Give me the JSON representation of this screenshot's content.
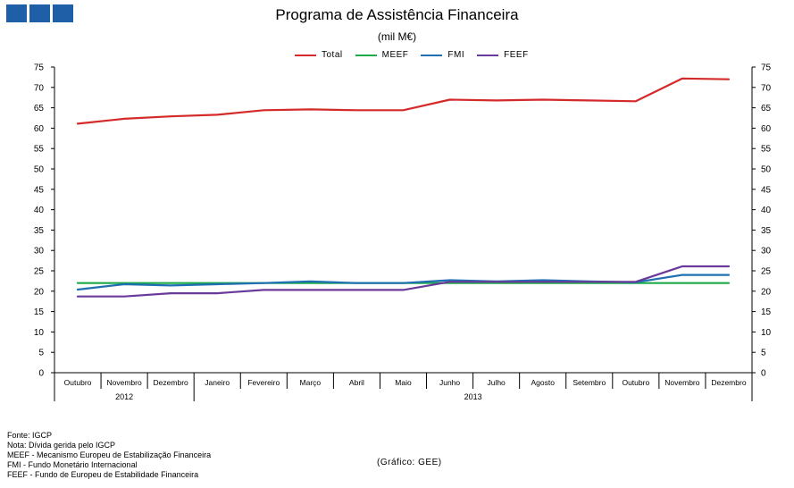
{
  "header": {
    "title": "Programa  de Assistência Financeira",
    "subtitle": "(mil M€)"
  },
  "legend": [
    {
      "label": "Total",
      "color": "#d42a2a"
    },
    {
      "label": "MEEF",
      "color": "#1faa4a"
    },
    {
      "label": "FMI",
      "color": "#1f6fb2"
    },
    {
      "label": "FEEF",
      "color": "#6a3a9a"
    }
  ],
  "chart_data": {
    "type": "line",
    "title": "Programa  de Assistência Financeira",
    "ylabel": "(mil M€)",
    "xlabel": "",
    "ylim": [
      0,
      75
    ],
    "yticks": [
      0,
      5,
      10,
      15,
      20,
      25,
      30,
      35,
      40,
      45,
      50,
      55,
      60,
      65,
      70,
      75
    ],
    "categories": [
      "Outubro",
      "Novembro",
      "Dezembro",
      "Janeiro",
      "Fevereiro",
      "Março",
      "Abril",
      "Maio",
      "Junho",
      "Julho",
      "Agosto",
      "Setembro",
      "Outubro",
      "Novembro",
      "Dezembro"
    ],
    "year_groups": [
      {
        "label": "2012",
        "span": 3
      },
      {
        "label": "2013",
        "span": 12
      }
    ],
    "grid": false,
    "series": [
      {
        "name": "Total",
        "color": "#d42a2a",
        "values": [
          61.1,
          62.3,
          62.9,
          63.3,
          64.4,
          64.6,
          64.4,
          64.4,
          67.0,
          66.8,
          67.0,
          66.8,
          66.6,
          72.2,
          72.0
        ]
      },
      {
        "name": "MEEF",
        "color": "#1faa4a",
        "values": [
          22.0,
          22.0,
          22.0,
          22.0,
          22.0,
          22.0,
          22.0,
          22.0,
          22.0,
          22.0,
          22.0,
          22.0,
          22.0,
          22.0,
          22.0
        ]
      },
      {
        "name": "FMI",
        "color": "#1f6fb2",
        "values": [
          20.4,
          21.7,
          21.4,
          21.7,
          22.0,
          22.4,
          22.0,
          22.0,
          22.7,
          22.4,
          22.7,
          22.4,
          22.2,
          24.0,
          24.0
        ]
      },
      {
        "name": "FEEF",
        "color": "#6a3a9a",
        "values": [
          18.7,
          18.7,
          19.5,
          19.5,
          20.3,
          20.3,
          20.3,
          20.3,
          22.3,
          22.3,
          22.3,
          22.3,
          22.3,
          26.1,
          26.1
        ]
      }
    ]
  },
  "footer": {
    "notes": [
      "Fonte: IGCP",
      "Nota: Dívida gerida pelo IGCP",
      "MEEF -  Mecanismo Europeu de Estabilização Financeira",
      "FMI - Fundo Monetário Internacional",
      "FEEF - Fundo de Europeu de Estabilidade Financeira"
    ],
    "credit": "(Gráfico:  GEE)"
  }
}
